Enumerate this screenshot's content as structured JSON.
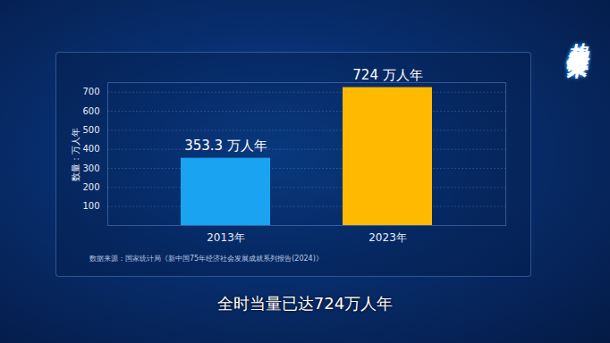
{
  "chart_data": {
    "type": "bar",
    "title": "从想象未来到回答未来",
    "subtitle": "全时当量已达724万人年",
    "source": "数据来源：国家统计局《新中国75年经济社会发展成就系列报告(2024)》",
    "y_label": "数量：万人年",
    "categories": [
      "2013年",
      "2023年"
    ],
    "values": [
      353.3,
      724
    ],
    "value_labels": [
      "353.3 万人年",
      "724 万人年"
    ],
    "colors": [
      "#1aa3f0",
      "#ffba00"
    ],
    "ylim": [
      0,
      750
    ],
    "yticks": [
      100,
      200,
      300,
      400,
      500,
      600,
      700
    ],
    "grid": true,
    "data_labels": true
  }
}
